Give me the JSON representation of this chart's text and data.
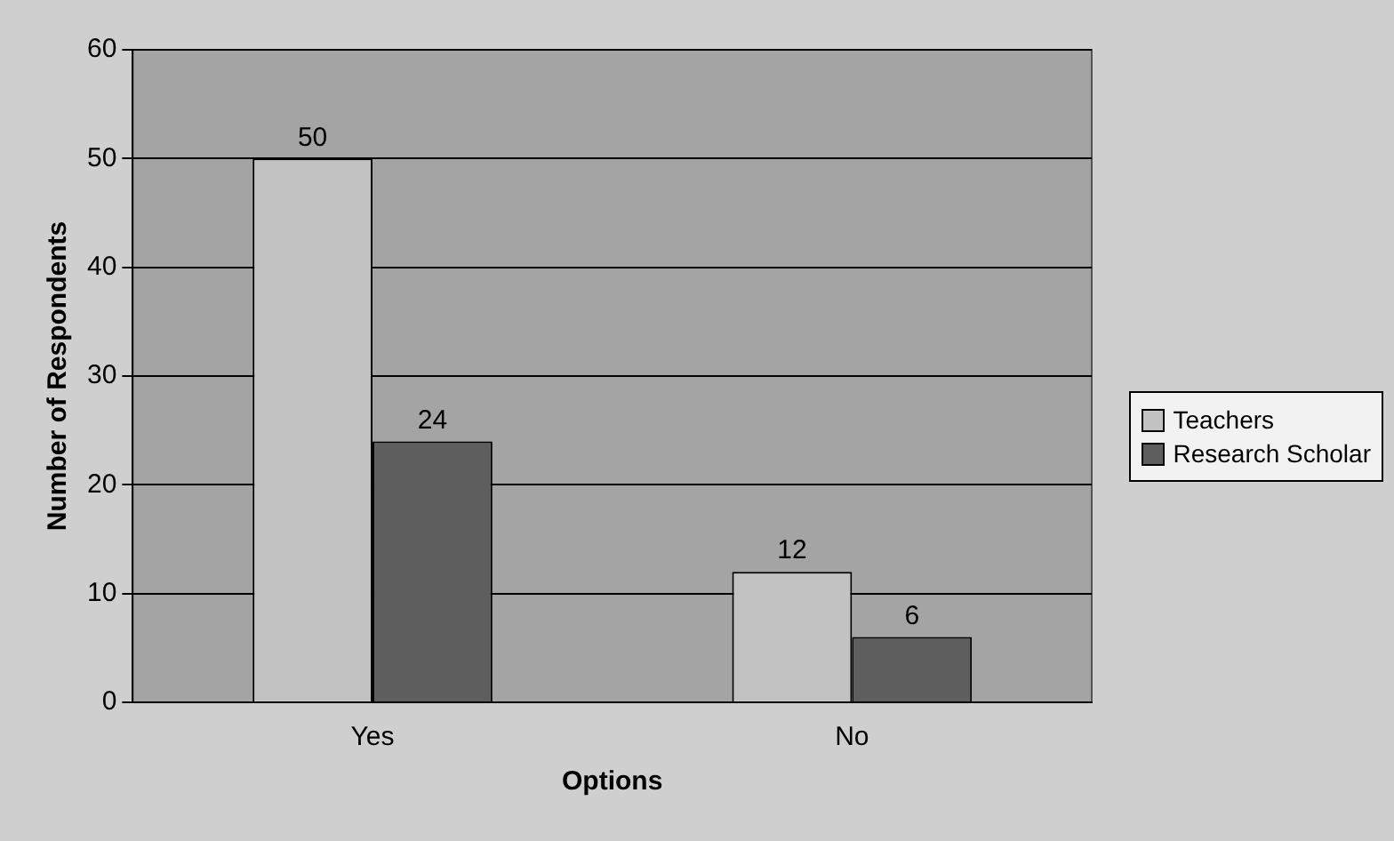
{
  "chart_data": {
    "type": "bar",
    "xlabel": "Options",
    "ylabel": "Number of Respondents",
    "categories": [
      "Yes",
      "No"
    ],
    "series": [
      {
        "name": "Teachers",
        "color": "#c2c2c2",
        "values": [
          50,
          12
        ]
      },
      {
        "name": "Research Scholar",
        "color": "#5e5e5e",
        "values": [
          24,
          6
        ]
      }
    ],
    "ylim": [
      0,
      60
    ],
    "yticks": [
      0,
      10,
      20,
      30,
      40,
      50,
      60
    ],
    "grid": "y",
    "legend": "right",
    "data_labels": true
  }
}
